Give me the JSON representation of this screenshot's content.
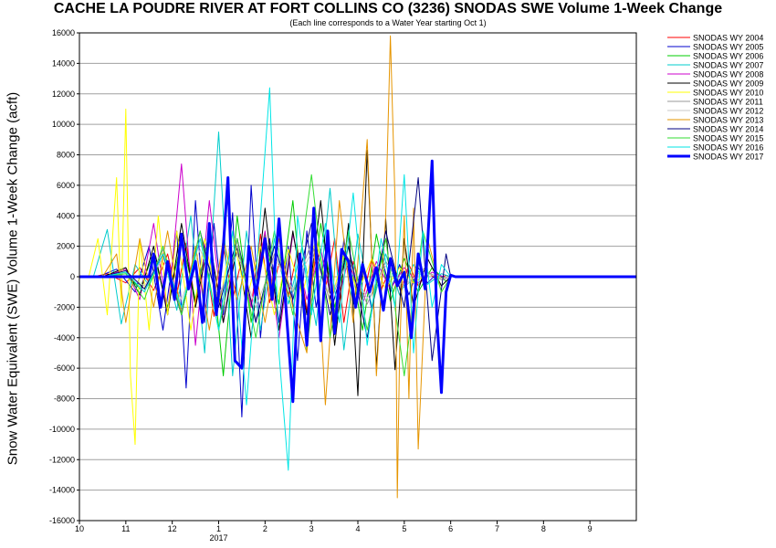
{
  "chart_data": {
    "type": "line",
    "title": "CACHE LA POUDRE RIVER AT FORT COLLINS CO (3236) SNODAS SWE Volume 1-Week Change",
    "subtitle": "(Each line corresponds to a Water Year starting Oct 1)",
    "xlabel": "",
    "ylabel": "Snow Water Equivalent (SWE) Volume 1-Week Change (acft)",
    "x_axis": {
      "unit": "month",
      "range": [
        10,
        22
      ],
      "ticks": [
        {
          "pos": 10,
          "label": "10"
        },
        {
          "pos": 11,
          "label": "11"
        },
        {
          "pos": 12,
          "label": "12"
        },
        {
          "pos": 13,
          "label": "1"
        },
        {
          "pos": 14,
          "label": "2"
        },
        {
          "pos": 15,
          "label": "3"
        },
        {
          "pos": 16,
          "label": "4"
        },
        {
          "pos": 17,
          "label": "5"
        },
        {
          "pos": 18,
          "label": "6"
        },
        {
          "pos": 19,
          "label": "7"
        },
        {
          "pos": 20,
          "label": "8"
        },
        {
          "pos": 21,
          "label": "9"
        }
      ],
      "year_label": {
        "pos": 13,
        "label": "2017"
      }
    },
    "ylim": [
      -16000,
      16000
    ],
    "yticks": [
      -16000,
      -14000,
      -12000,
      -10000,
      -8000,
      -6000,
      -4000,
      -2000,
      0,
      2000,
      4000,
      6000,
      8000,
      10000,
      12000,
      14000,
      16000
    ],
    "grid": true,
    "legend_position": "right",
    "series": [
      {
        "name": "SNODAS WY 2004",
        "color": "#ff0000",
        "width": 1,
        "x": [
          10.0,
          10.3,
          10.6,
          11.0,
          11.3,
          11.6,
          11.9,
          12.1,
          12.3,
          12.5,
          12.7,
          12.9,
          13.1,
          13.3,
          13.5,
          13.7,
          13.9,
          14.1,
          14.3,
          14.5,
          14.7,
          14.9,
          15.1,
          15.3,
          15.5,
          15.7,
          15.9,
          16.1,
          16.3,
          16.5,
          16.7,
          16.9,
          17.1,
          17.3,
          17.5,
          17.7,
          17.9,
          18.0,
          22.0
        ],
        "y": [
          0,
          0,
          200,
          -400,
          600,
          -900,
          1500,
          -1200,
          2200,
          -1800,
          1600,
          -2600,
          2000,
          -1500,
          1200,
          -2000,
          2800,
          -1700,
          900,
          -1300,
          1800,
          -2200,
          1400,
          -800,
          2500,
          -3000,
          1000,
          -1500,
          1200,
          -900,
          600,
          -1200,
          800,
          -600,
          300,
          -200,
          100,
          0,
          0
        ]
      },
      {
        "name": "SNODAS WY 2005",
        "color": "#0000cc",
        "width": 1,
        "x": [
          10.0,
          10.4,
          10.8,
          11.2,
          11.5,
          11.8,
          12.1,
          12.3,
          12.5,
          12.7,
          12.9,
          13.1,
          13.3,
          13.5,
          13.7,
          13.9,
          14.1,
          14.3,
          14.5,
          14.7,
          14.9,
          15.1,
          15.3,
          15.5,
          15.7,
          15.9,
          16.1,
          16.3,
          16.5,
          16.7,
          16.9,
          17.1,
          17.3,
          17.5,
          17.7,
          17.9,
          18.0,
          22.0
        ],
        "y": [
          0,
          0,
          500,
          -1000,
          2000,
          -3500,
          3000,
          -7300,
          5000,
          -3000,
          3500,
          -2500,
          4200,
          -9200,
          6000,
          -4000,
          2500,
          -3000,
          2000,
          -5500,
          3000,
          -2000,
          1500,
          -3800,
          2500,
          -1800,
          1000,
          -2200,
          1500,
          -1000,
          800,
          -1200,
          600,
          -400,
          200,
          -100,
          0,
          0
        ]
      },
      {
        "name": "SNODAS WY 2006",
        "color": "#00cc00",
        "width": 1,
        "x": [
          10.0,
          10.5,
          11.0,
          11.3,
          11.6,
          11.9,
          12.2,
          12.5,
          12.8,
          13.1,
          13.4,
          13.7,
          14.0,
          14.3,
          14.6,
          14.9,
          15.2,
          15.5,
          15.8,
          16.1,
          16.4,
          16.7,
          17.0,
          17.3,
          17.6,
          17.9,
          18.0,
          22.0
        ],
        "y": [
          0,
          0,
          300,
          -800,
          1500,
          -2000,
          2500,
          -1500,
          3000,
          -6500,
          4000,
          -3000,
          2800,
          -1800,
          5000,
          -4800,
          3500,
          -2000,
          2000,
          -3500,
          2800,
          -1600,
          1200,
          -1000,
          600,
          -300,
          0,
          0
        ]
      },
      {
        "name": "SNODAS WY 2007",
        "color": "#00cccc",
        "width": 1,
        "x": [
          10.0,
          10.3,
          10.6,
          10.9,
          11.2,
          11.5,
          11.8,
          12.1,
          12.4,
          12.7,
          13.0,
          13.3,
          13.6,
          13.9,
          14.2,
          14.5,
          14.8,
          15.1,
          15.4,
          15.7,
          16.0,
          16.3,
          16.6,
          16.9,
          17.2,
          17.5,
          17.8,
          18.0,
          22.0
        ],
        "y": [
          0,
          0,
          3100,
          -3100,
          800,
          -600,
          1500,
          -2200,
          4000,
          -5000,
          9500,
          -6500,
          3000,
          -3500,
          2500,
          -1800,
          2000,
          -3200,
          5800,
          -4800,
          2800,
          -2000,
          1500,
          -1200,
          800,
          -500,
          200,
          0,
          0
        ]
      },
      {
        "name": "SNODAS WY 2008",
        "color": "#cc00cc",
        "width": 1,
        "x": [
          10.0,
          10.5,
          11.0,
          11.3,
          11.6,
          11.9,
          12.2,
          12.5,
          12.8,
          13.1,
          13.4,
          13.7,
          14.0,
          14.3,
          14.6,
          14.9,
          15.2,
          15.5,
          15.8,
          16.1,
          16.4,
          16.7,
          17.0,
          17.3,
          17.6,
          17.9,
          18.0,
          22.0
        ],
        "y": [
          0,
          0,
          500,
          -1500,
          3500,
          -2500,
          7400,
          -4500,
          5000,
          -3000,
          2500,
          -2000,
          3000,
          -4000,
          2800,
          -1500,
          1800,
          -2500,
          1200,
          -1800,
          1000,
          -800,
          600,
          -400,
          300,
          -100,
          0,
          0
        ]
      },
      {
        "name": "SNODAS WY 2009",
        "color": "#000000",
        "width": 1,
        "x": [
          10.0,
          10.5,
          11.0,
          11.3,
          11.6,
          11.9,
          12.2,
          12.5,
          12.8,
          13.1,
          13.4,
          13.7,
          14.0,
          14.3,
          14.6,
          14.9,
          15.2,
          15.5,
          15.8,
          16.0,
          16.2,
          16.4,
          16.6,
          16.8,
          17.0,
          17.2,
          17.5,
          17.8,
          18.0,
          22.0
        ],
        "y": [
          0,
          0,
          600,
          -1200,
          2000,
          -2500,
          3500,
          -2000,
          2500,
          -3000,
          2000,
          -4000,
          4500,
          -3500,
          3000,
          -2500,
          5000,
          -4500,
          3500,
          -7800,
          8300,
          -6000,
          3800,
          -6100,
          2500,
          -2000,
          1200,
          -600,
          0,
          0
        ]
      },
      {
        "name": "SNODAS WY 2010",
        "color": "#ffff00",
        "width": 1,
        "x": [
          10.0,
          10.2,
          10.4,
          10.6,
          10.8,
          10.9,
          11.0,
          11.1,
          11.2,
          11.3,
          11.5,
          11.7,
          11.9,
          12.1,
          12.4,
          12.7,
          13.0,
          13.3,
          13.6,
          13.9,
          14.2,
          14.5,
          14.8,
          15.1,
          15.4,
          15.7,
          16.0,
          16.3,
          16.6,
          16.9,
          17.2,
          17.5,
          17.8,
          18.0,
          22.0
        ],
        "y": [
          0,
          0,
          2500,
          -2500,
          6500,
          -2000,
          11000,
          -6500,
          -11000,
          2500,
          -3500,
          4000,
          -2500,
          3000,
          -3500,
          2500,
          -2000,
          2800,
          -1500,
          2000,
          -2500,
          1800,
          -1200,
          2500,
          -1800,
          1500,
          -1000,
          1200,
          -800,
          600,
          -400,
          200,
          -100,
          0,
          0
        ]
      },
      {
        "name": "SNODAS WY 2011",
        "color": "#999999",
        "width": 1,
        "x": [
          10.0,
          10.5,
          11.0,
          11.4,
          11.8,
          12.2,
          12.6,
          13.0,
          13.4,
          13.8,
          14.2,
          14.6,
          15.0,
          15.4,
          15.8,
          16.2,
          16.6,
          17.0,
          17.4,
          17.8,
          18.0,
          22.0
        ],
        "y": [
          0,
          0,
          300,
          -1000,
          1800,
          -2200,
          2500,
          -1500,
          2000,
          -2800,
          1500,
          -1000,
          2200,
          -1600,
          1200,
          -1800,
          1000,
          -700,
          500,
          -200,
          0,
          0
        ]
      },
      {
        "name": "SNODAS WY 2012",
        "color": "#c8c8c8",
        "width": 1,
        "x": [
          10.0,
          10.5,
          11.0,
          11.4,
          11.8,
          12.2,
          12.6,
          13.0,
          13.4,
          13.8,
          14.2,
          14.6,
          15.0,
          15.4,
          15.8,
          16.2,
          16.6,
          17.0,
          17.4,
          17.8,
          18.0,
          22.0
        ],
        "y": [
          0,
          0,
          200,
          -600,
          1200,
          -1500,
          1800,
          -1200,
          1500,
          -2000,
          1200,
          -800,
          1600,
          -1200,
          900,
          -1400,
          700,
          -500,
          300,
          -100,
          0,
          0
        ]
      },
      {
        "name": "SNODAS WY 2013",
        "color": "#e69500",
        "width": 1,
        "x": [
          10.0,
          10.5,
          10.8,
          11.0,
          11.3,
          11.6,
          11.9,
          12.2,
          12.5,
          12.8,
          13.1,
          13.4,
          13.7,
          14.0,
          14.3,
          14.6,
          14.9,
          15.1,
          15.3,
          15.6,
          15.9,
          16.2,
          16.4,
          16.6,
          16.7,
          16.8,
          16.85,
          16.9,
          17.0,
          17.1,
          17.2,
          17.3,
          17.5,
          17.8,
          18.0,
          22.0
        ],
        "y": [
          0,
          0,
          1500,
          -3000,
          2500,
          -2000,
          3000,
          -2500,
          2000,
          -3500,
          2500,
          -1500,
          2000,
          -3000,
          2500,
          -2000,
          -5000,
          2800,
          -8400,
          5000,
          -3000,
          9000,
          -6500,
          4000,
          15800,
          5000,
          -14500,
          -5000,
          4000,
          -8000,
          4500,
          -11300,
          2500,
          -1000,
          0,
          0
        ]
      },
      {
        "name": "SNODAS WY 2014",
        "color": "#000080",
        "width": 1,
        "x": [
          10.0,
          10.5,
          11.0,
          11.4,
          11.8,
          12.2,
          12.6,
          13.0,
          13.4,
          13.8,
          14.2,
          14.6,
          15.0,
          15.4,
          15.8,
          16.2,
          16.6,
          17.0,
          17.3,
          17.6,
          17.9,
          18.0,
          22.0
        ],
        "y": [
          0,
          0,
          400,
          -800,
          1500,
          -2500,
          3000,
          -2000,
          2500,
          -3000,
          2000,
          -1500,
          3500,
          -2500,
          2000,
          -4000,
          3000,
          -2000,
          6500,
          -5500,
          1500,
          0,
          0
        ]
      },
      {
        "name": "SNODAS WY 2015",
        "color": "#33dd33",
        "width": 1,
        "x": [
          10.0,
          10.5,
          11.0,
          11.4,
          11.8,
          12.2,
          12.6,
          13.0,
          13.4,
          13.8,
          14.2,
          14.6,
          15.0,
          15.4,
          15.8,
          16.2,
          16.6,
          17.0,
          17.4,
          17.8,
          18.0,
          22.0
        ],
        "y": [
          0,
          0,
          200,
          -1500,
          2000,
          -2500,
          3000,
          -3500,
          2500,
          -4000,
          3000,
          -2500,
          6700,
          -4000,
          3000,
          -3500,
          2500,
          -6500,
          3000,
          -1000,
          0,
          0
        ]
      },
      {
        "name": "SNODAS WY 2016",
        "color": "#00e6e6",
        "width": 1,
        "x": [
          10.0,
          10.5,
          11.0,
          11.4,
          11.8,
          12.2,
          12.6,
          13.0,
          13.3,
          13.6,
          13.9,
          14.1,
          14.3,
          14.5,
          14.7,
          15.0,
          15.3,
          15.6,
          15.9,
          16.2,
          16.5,
          16.8,
          17.0,
          17.2,
          17.4,
          17.6,
          17.8,
          18.0,
          22.0
        ],
        "y": [
          0,
          0,
          300,
          -1000,
          1500,
          -2000,
          2500,
          -3500,
          3000,
          -8400,
          4000,
          12400,
          -5000,
          -12700,
          4000,
          -2500,
          3500,
          -3000,
          5500,
          -4500,
          2500,
          -2000,
          6700,
          -5000,
          3000,
          -2000,
          800,
          0,
          0
        ]
      },
      {
        "name": "SNODAS WY 2017",
        "color": "#0000ff",
        "width": 3,
        "x": [
          10.0,
          11.5,
          11.6,
          11.75,
          11.9,
          12.05,
          12.2,
          12.35,
          12.5,
          12.65,
          12.8,
          12.95,
          13.1,
          13.2,
          13.35,
          13.5,
          13.65,
          13.8,
          14.0,
          14.15,
          14.3,
          14.45,
          14.6,
          14.75,
          14.9,
          15.05,
          15.2,
          15.35,
          15.5,
          15.65,
          15.8,
          15.95,
          16.1,
          16.25,
          16.4,
          16.55,
          16.7,
          16.85,
          17.0,
          17.15,
          17.3,
          17.45,
          17.6,
          17.7,
          17.8,
          17.9,
          18.0,
          18.1,
          22.0
        ],
        "y": [
          0,
          0,
          1500,
          -2000,
          1000,
          -1500,
          2800,
          -800,
          1000,
          -3000,
          3500,
          -2500,
          2000,
          6500,
          -5500,
          -6000,
          2000,
          -1200,
          2500,
          -1500,
          3800,
          -2000,
          -8200,
          1500,
          -4500,
          4500,
          -4200,
          3000,
          -3700,
          1800,
          1000,
          -2000,
          800,
          -1000,
          600,
          -2200,
          1200,
          -600,
          300,
          -4000,
          1500,
          -800,
          7600,
          -2500,
          -7600,
          -1000,
          100,
          0,
          0
        ]
      }
    ]
  }
}
